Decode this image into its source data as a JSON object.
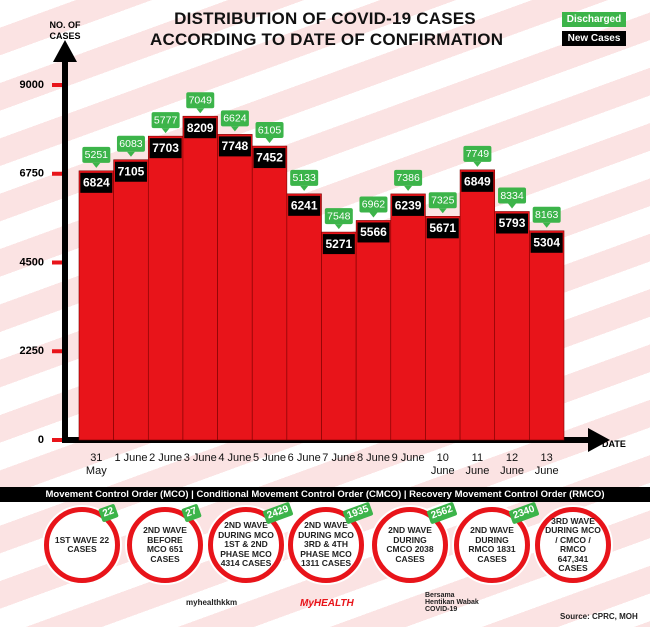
{
  "chart_data": {
    "type": "bar",
    "title": [
      "DISTRIBUTION OF COVID-19 CASES",
      "ACCORDING TO DATE OF CONFIRMATION"
    ],
    "y_label": "NO. OF CASES",
    "x_label": "DATE",
    "categories": [
      "31 May",
      "1 June",
      "2 June",
      "3 June",
      "4 June",
      "5 June",
      "6 June",
      "7 June",
      "8 June",
      "9 June",
      "10 June",
      "11 June",
      "12 June",
      "13 June"
    ],
    "bar_color": "#e8141a",
    "series": [
      {
        "name": "New Cases",
        "color": "#000000",
        "values": [
          6824,
          7105,
          7703,
          8209,
          7748,
          7452,
          6241,
          5271,
          5566,
          6239,
          5671,
          6849,
          5793,
          5304
        ]
      },
      {
        "name": "Discharged",
        "color": "#3cb44a",
        "values": [
          5251,
          6083,
          5777,
          7049,
          6624,
          6105,
          5133,
          7548,
          6962,
          7386,
          7325,
          7749,
          8334,
          8163
        ]
      }
    ],
    "ylim": [
      0,
      9000
    ],
    "yticks": [
      0,
      2250,
      4500,
      6750,
      9000
    ]
  },
  "order_banner": "Movement Control Order (MCO) | Conditional Movement Control Order (CMCO) | Recovery Movement Control Order (RMCO)",
  "waves": [
    {
      "text": "1ST WAVE 22 CASES",
      "badge": 22
    },
    {
      "text": "2ND WAVE BEFORE MCO 651 CASES",
      "badge": 27
    },
    {
      "text": "2ND WAVE DURING MCO 1ST & 2ND PHASE MCO 4314 CASES",
      "badge": 2429
    },
    {
      "text": "2ND WAVE DURING MCO 3RD & 4TH PHASE MCO 1311 CASES",
      "badge": 1935
    },
    {
      "text": "2ND WAVE DURING CMCO 2038 CASES",
      "badge": 2562
    },
    {
      "text": "2ND WAVE DURING RMCO 1831 CASES",
      "badge": 2340
    },
    {
      "text": "3RD WAVE DURING MCO / CMCO / RMCO 647,341 CASES"
    }
  ],
  "footer": {
    "social": "myhealthkkm",
    "brand": "MyHEALTH",
    "campaign": "Bersama Hentikan Wabak COVID-19",
    "source": "Source: CPRC, MOH"
  }
}
